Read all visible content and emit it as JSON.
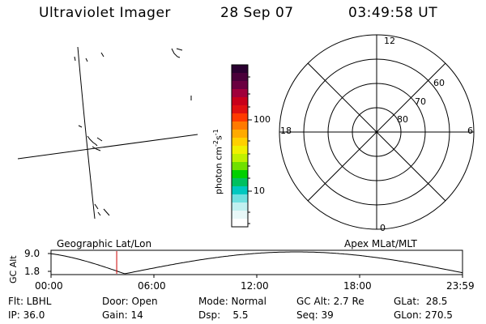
{
  "header": {
    "title": "Ultraviolet Imager",
    "date": "28 Sep 07",
    "time": "03:49:58 UT"
  },
  "colorbar": {
    "unit": "photon cm",
    "unit_exp1": "-2",
    "unit_mid": "s",
    "unit_exp2": "-1",
    "tick_100": "100",
    "tick_10": "10",
    "colors_top_to_bottom": [
      "#2a0030",
      "#4a003a",
      "#6a0040",
      "#a0003a",
      "#c8001a",
      "#e01010",
      "#ff3a00",
      "#ff7a00",
      "#ffaa00",
      "#ffd000",
      "#f0f000",
      "#c0f000",
      "#70e000",
      "#00d000",
      "#00c060",
      "#00c8c0",
      "#70e0e0",
      "#c0f0f0",
      "#e8f8f8",
      "#ffffff"
    ]
  },
  "polar": {
    "mlt_12": "12",
    "mlt_18": "18",
    "mlt_6": "6",
    "mlt_0": "0",
    "lat_60": "60",
    "lat_70": "70",
    "lat_80": "80"
  },
  "timeline": {
    "y_label": "GC Alt",
    "y_max": "9.0",
    "y_min": "1.8",
    "left_title": "Geographic Lat/Lon",
    "right_title": "Apex MLat/MLT",
    "ticks": [
      "00:00",
      "06:00",
      "12:00",
      "18:00",
      "23:59"
    ],
    "marker_hours": 3.83,
    "marker_color": "#cc0000"
  },
  "info": {
    "filter": "Flt: LBHL",
    "ip": "IP: 36.0",
    "door": "Door: Open",
    "gain": "Gain: 14",
    "mode": "Mode: Normal",
    "dsp": "Dsp:    5.5",
    "gc_alt": "GC Alt: 2.7 Re",
    "seq": "Seq: 39",
    "glat": "GLat:  28.5",
    "glon": "GLon: 270.5"
  }
}
